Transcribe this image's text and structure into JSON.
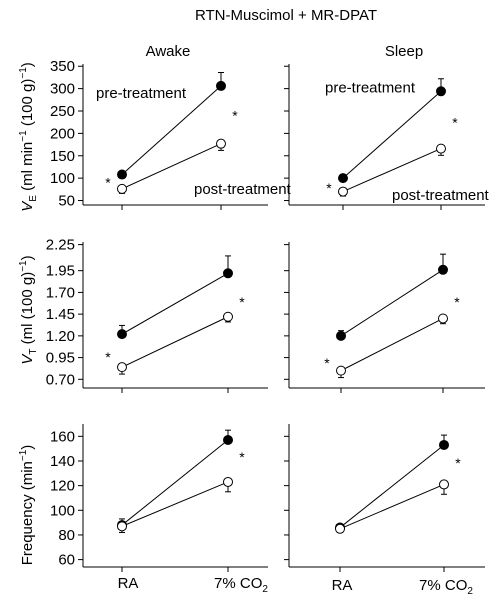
{
  "figure": {
    "title": "RTN-Muscimol + MR-DPAT",
    "column_labels": [
      "Awake",
      "Sleep"
    ]
  },
  "chart_data": [
    {
      "type": "line",
      "panel": "VE awake",
      "categories": [
        "RA",
        "7% CO2"
      ],
      "ylim": [
        40,
        355
      ],
      "yticks": [
        50,
        100,
        150,
        200,
        250,
        300,
        350
      ],
      "ytick_labels": [
        "50",
        "100",
        "150",
        "200",
        "250",
        "300",
        "350"
      ],
      "ylabel": "VE (ml min−1 (100 g)−1)",
      "series": [
        {
          "name": "pre-treatment",
          "marker": "filled",
          "values": [
            108,
            306
          ],
          "err": [
            0,
            30
          ]
        },
        {
          "name": "post-treatment",
          "marker": "open",
          "values": [
            76,
            177
          ],
          "err": [
            10,
            15
          ]
        }
      ],
      "annotations": [
        {
          "text": "*",
          "cat": 0,
          "y": 92
        },
        {
          "text": "*",
          "cat": 1,
          "y": 242
        }
      ],
      "labels": [
        {
          "text": "pre-treatment",
          "y": 290
        },
        {
          "text": "post-treatment",
          "y": 76
        }
      ]
    },
    {
      "type": "line",
      "panel": "VE sleep",
      "categories": [
        "RA",
        "7% CO2"
      ],
      "ylim": [
        40,
        355
      ],
      "series": [
        {
          "name": "pre-treatment",
          "marker": "filled",
          "values": [
            100,
            294
          ],
          "err": [
            0,
            28
          ]
        },
        {
          "name": "post-treatment",
          "marker": "open",
          "values": [
            70,
            166
          ],
          "err": [
            10,
            15
          ]
        }
      ],
      "annotations": [
        {
          "text": "*",
          "cat": 0,
          "y": 80
        },
        {
          "text": "*",
          "cat": 1,
          "y": 227
        }
      ],
      "labels": [
        {
          "text": "pre-treatment",
          "y": 302
        },
        {
          "text": "post-treatment",
          "y": 62
        }
      ]
    },
    {
      "type": "line",
      "panel": "VT awake",
      "categories": [
        "RA",
        "7% CO2"
      ],
      "ylim": [
        0.6,
        2.28
      ],
      "yticks": [
        0.7,
        0.95,
        1.2,
        1.45,
        1.7,
        1.95,
        2.25
      ],
      "ytick_labels": [
        "0.70",
        "0.95",
        "1.20",
        "1.45",
        "1.70",
        "1.95",
        "2.25"
      ],
      "ylabel": "VT (ml (100 g)−1)",
      "series": [
        {
          "name": "pre-treatment",
          "marker": "filled",
          "values": [
            1.22,
            1.92
          ],
          "err": [
            0.1,
            0.2
          ]
        },
        {
          "name": "post-treatment",
          "marker": "open",
          "values": [
            0.84,
            1.42
          ],
          "err": [
            0.08,
            0.06
          ]
        }
      ],
      "annotations": [
        {
          "text": "*",
          "cat": 0,
          "y": 0.97
        },
        {
          "text": "*",
          "cat": 1,
          "y": 1.6
        }
      ]
    },
    {
      "type": "line",
      "panel": "VT sleep",
      "categories": [
        "RA",
        "7% CO2"
      ],
      "ylim": [
        0.6,
        2.28
      ],
      "series": [
        {
          "name": "pre-treatment",
          "marker": "filled",
          "values": [
            1.2,
            1.96
          ],
          "err": [
            0.06,
            0.18
          ]
        },
        {
          "name": "post-treatment",
          "marker": "open",
          "values": [
            0.8,
            1.4
          ],
          "err": [
            0.08,
            0.06
          ]
        }
      ],
      "annotations": [
        {
          "text": "*",
          "cat": 0,
          "y": 0.9
        },
        {
          "text": "*",
          "cat": 1,
          "y": 1.6
        }
      ]
    },
    {
      "type": "line",
      "panel": "Frequency awake",
      "categories": [
        "RA",
        "7% CO2"
      ],
      "ylim": [
        54,
        170
      ],
      "yticks": [
        60,
        80,
        100,
        120,
        140,
        160
      ],
      "ytick_labels": [
        "60",
        "80",
        "100",
        "120",
        "140",
        "160"
      ],
      "ylabel": "Frequency (min−1)",
      "series": [
        {
          "name": "pre-treatment",
          "marker": "filled",
          "values": [
            88,
            157
          ],
          "err": [
            5,
            8
          ]
        },
        {
          "name": "post-treatment",
          "marker": "open",
          "values": [
            87,
            123
          ],
          "err": [
            5,
            8
          ]
        }
      ],
      "annotations": [
        {
          "text": "*",
          "cat": 1,
          "y": 144
        }
      ]
    },
    {
      "type": "line",
      "panel": "Frequency sleep",
      "categories": [
        "RA",
        "7% CO2"
      ],
      "ylim": [
        54,
        170
      ],
      "series": [
        {
          "name": "pre-treatment",
          "marker": "filled",
          "values": [
            86,
            153
          ],
          "err": [
            2,
            8
          ]
        },
        {
          "name": "post-treatment",
          "marker": "open",
          "values": [
            85,
            121
          ],
          "err": [
            3,
            8
          ]
        }
      ],
      "annotations": [
        {
          "text": "*",
          "cat": 1,
          "y": 139
        }
      ]
    }
  ]
}
